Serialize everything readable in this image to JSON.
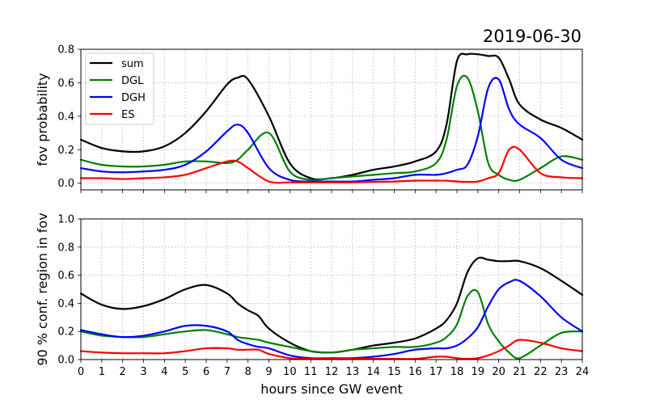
{
  "chart_data": [
    {
      "type": "line",
      "title": "2019-06-30",
      "xlabel": "",
      "ylabel": "fov probability",
      "xlim": [
        0,
        24
      ],
      "ylim": [
        -0.04,
        0.8
      ],
      "x_ticks": [
        0,
        1,
        2,
        3,
        4,
        5,
        6,
        7,
        8,
        9,
        10,
        11,
        12,
        13,
        14,
        15,
        16,
        17,
        18,
        19,
        20,
        21,
        22,
        23,
        24
      ],
      "y_ticks": [
        0.0,
        0.2,
        0.4,
        0.6,
        0.8
      ],
      "y_tick_labels": [
        "0.0",
        "0.2",
        "0.4",
        "0.6",
        "0.8"
      ],
      "grid": true,
      "legend": "top-left",
      "x": [
        0,
        1,
        2,
        3,
        4,
        5,
        6,
        7,
        7.5,
        8,
        9,
        10,
        11,
        12,
        13,
        14,
        15,
        16,
        17,
        17.5,
        18,
        18.5,
        19,
        19.5,
        20,
        20.5,
        21,
        22,
        23,
        24
      ],
      "series": [
        {
          "name": "sum",
          "color": "#000000",
          "values": [
            0.26,
            0.21,
            0.19,
            0.19,
            0.22,
            0.3,
            0.43,
            0.59,
            0.63,
            0.62,
            0.4,
            0.12,
            0.03,
            0.03,
            0.05,
            0.08,
            0.1,
            0.13,
            0.19,
            0.35,
            0.73,
            0.77,
            0.77,
            0.76,
            0.75,
            0.62,
            0.47,
            0.38,
            0.33,
            0.26
          ]
        },
        {
          "name": "DGL",
          "color": "#008000",
          "values": [
            0.14,
            0.11,
            0.1,
            0.1,
            0.11,
            0.13,
            0.13,
            0.12,
            0.14,
            0.2,
            0.3,
            0.07,
            0.02,
            0.03,
            0.04,
            0.05,
            0.06,
            0.07,
            0.12,
            0.26,
            0.58,
            0.63,
            0.43,
            0.12,
            0.05,
            0.02,
            0.02,
            0.09,
            0.16,
            0.14
          ]
        },
        {
          "name": "DGH",
          "color": "#0000ff",
          "values": [
            0.09,
            0.07,
            0.065,
            0.07,
            0.08,
            0.11,
            0.19,
            0.31,
            0.35,
            0.3,
            0.09,
            0.02,
            0.01,
            0.01,
            0.01,
            0.02,
            0.03,
            0.05,
            0.05,
            0.06,
            0.08,
            0.11,
            0.28,
            0.57,
            0.62,
            0.44,
            0.35,
            0.27,
            0.14,
            0.09
          ]
        },
        {
          "name": "ES",
          "color": "#ff0000",
          "values": [
            0.03,
            0.03,
            0.025,
            0.03,
            0.035,
            0.05,
            0.09,
            0.13,
            0.13,
            0.09,
            0.01,
            0.005,
            0.005,
            0.005,
            0.005,
            0.008,
            0.01,
            0.015,
            0.015,
            0.015,
            0.01,
            0.008,
            0.01,
            0.03,
            0.06,
            0.2,
            0.2,
            0.06,
            0.035,
            0.03
          ]
        }
      ]
    },
    {
      "type": "line",
      "title": "",
      "xlabel": "hours since GW event",
      "ylabel": "90 % conf. region in fov",
      "xlim": [
        0,
        24
      ],
      "ylim": [
        0,
        1.0
      ],
      "x_ticks": [
        0,
        1,
        2,
        3,
        4,
        5,
        6,
        7,
        8,
        9,
        10,
        11,
        12,
        13,
        14,
        15,
        16,
        17,
        18,
        19,
        20,
        21,
        22,
        23,
        24
      ],
      "x_tick_labels": [
        "0",
        "1",
        "2",
        "3",
        "4",
        "5",
        "6",
        "7",
        "8",
        "9",
        "10",
        "11",
        "12",
        "13",
        "14",
        "15",
        "16",
        "17",
        "18",
        "19",
        "20",
        "21",
        "22",
        "23",
        "24"
      ],
      "y_ticks": [
        0.0,
        0.2,
        0.4,
        0.6,
        0.8,
        1.0
      ],
      "y_tick_labels": [
        "0.0",
        "0.2",
        "0.4",
        "0.6",
        "0.8",
        "1.0"
      ],
      "grid": true,
      "x": [
        0,
        1,
        2,
        3,
        4,
        5,
        6,
        7,
        7.5,
        8,
        8.5,
        9,
        10,
        11,
        12,
        13,
        14,
        15,
        16,
        17,
        17.5,
        18,
        18.5,
        19,
        19.5,
        20,
        20.5,
        21,
        22,
        23,
        24
      ],
      "series": [
        {
          "name": "sum",
          "color": "#000000",
          "values": [
            0.47,
            0.39,
            0.36,
            0.38,
            0.43,
            0.5,
            0.53,
            0.47,
            0.4,
            0.35,
            0.31,
            0.22,
            0.12,
            0.06,
            0.05,
            0.07,
            0.1,
            0.12,
            0.15,
            0.22,
            0.28,
            0.4,
            0.62,
            0.72,
            0.71,
            0.7,
            0.7,
            0.7,
            0.65,
            0.56,
            0.46
          ]
        },
        {
          "name": "DGL",
          "color": "#008000",
          "values": [
            0.2,
            0.17,
            0.16,
            0.16,
            0.18,
            0.2,
            0.21,
            0.18,
            0.16,
            0.15,
            0.14,
            0.12,
            0.09,
            0.06,
            0.05,
            0.07,
            0.08,
            0.09,
            0.09,
            0.12,
            0.16,
            0.25,
            0.45,
            0.48,
            0.25,
            0.13,
            0.05,
            0.01,
            0.1,
            0.19,
            0.2
          ]
        },
        {
          "name": "DGH",
          "color": "#0000ff",
          "values": [
            0.21,
            0.18,
            0.16,
            0.17,
            0.2,
            0.24,
            0.24,
            0.2,
            0.14,
            0.11,
            0.09,
            0.08,
            0.03,
            0.01,
            0.01,
            0.01,
            0.02,
            0.04,
            0.07,
            0.08,
            0.08,
            0.1,
            0.15,
            0.23,
            0.38,
            0.5,
            0.55,
            0.56,
            0.45,
            0.3,
            0.2
          ]
        },
        {
          "name": "ES",
          "color": "#ff0000",
          "values": [
            0.06,
            0.05,
            0.045,
            0.045,
            0.045,
            0.06,
            0.08,
            0.08,
            0.07,
            0.07,
            0.07,
            0.04,
            0.01,
            0.005,
            0.005,
            0.005,
            0.005,
            0.005,
            0.005,
            0.02,
            0.02,
            0.01,
            0.005,
            0.01,
            0.03,
            0.06,
            0.1,
            0.14,
            0.12,
            0.08,
            0.06
          ]
        }
      ]
    }
  ]
}
